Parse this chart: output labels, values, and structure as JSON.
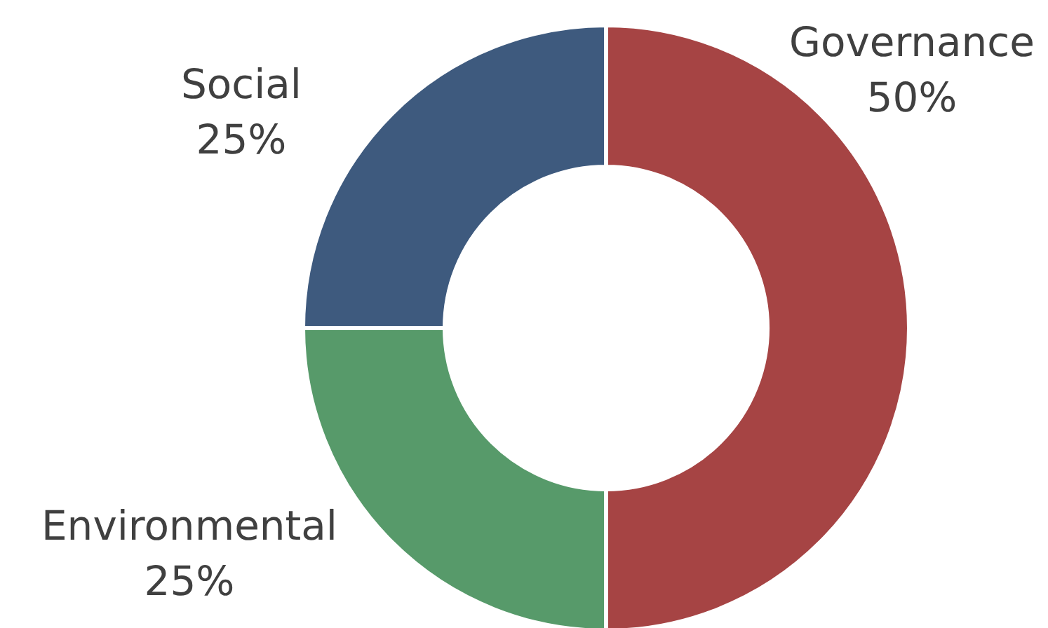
{
  "chart_data": {
    "type": "donut",
    "categories": [
      "Governance",
      "Environmental",
      "Social"
    ],
    "values": [
      50,
      25,
      25
    ],
    "colors": [
      "#a64444",
      "#579a6a",
      "#3e5a7e"
    ],
    "value_labels": [
      "50%",
      "25%",
      "25%"
    ]
  }
}
